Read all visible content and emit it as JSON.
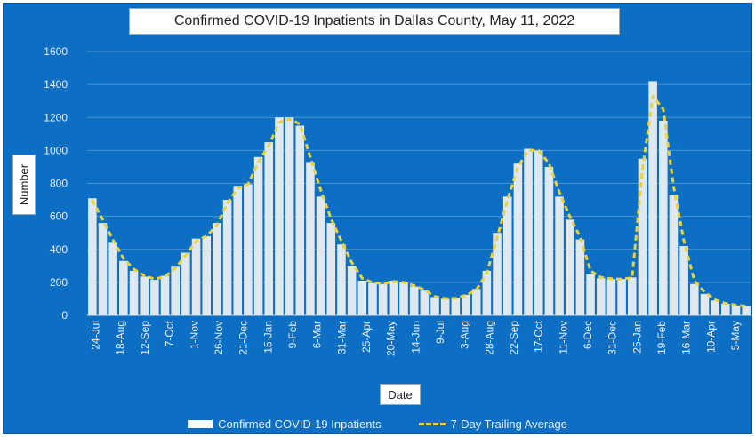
{
  "colors": {
    "background": "#0d6fc4",
    "bars": "#dfe7ef",
    "average_line": "#e6d43a",
    "gridline": "#4a93d4",
    "tick_text": "#e8eef6"
  },
  "chart_data": {
    "type": "bar",
    "title": "Confirmed COVID-19 Inpatients in Dallas County, May 11, 2022",
    "xlabel": "Date",
    "ylabel": "Number",
    "ylim": [
      0,
      1600
    ],
    "yticks": [
      0,
      200,
      400,
      600,
      800,
      1000,
      1200,
      1400,
      1600
    ],
    "grid": true,
    "legend_position": "bottom",
    "x_tick_labels": [
      "24-Jul",
      "18-Aug",
      "12-Sep",
      "7-Oct",
      "1-Nov",
      "26-Nov",
      "21-Dec",
      "15-Jan",
      "9-Feb",
      "6-Mar",
      "31-Mar",
      "25-Apr",
      "20-May",
      "14-Jun",
      "9-Jul",
      "3-Aug",
      "28-Aug",
      "22-Sep",
      "17-Oct",
      "11-Nov",
      "6-Dec",
      "31-Dec",
      "25-Jan",
      "19-Feb",
      "16-Mar",
      "10-Apr",
      "5-May"
    ],
    "series": [
      {
        "name": "Confirmed COVID-19 Inpatients",
        "type": "bar",
        "values": [
          710,
          560,
          440,
          330,
          270,
          235,
          215,
          240,
          295,
          380,
          465,
          480,
          560,
          700,
          785,
          795,
          960,
          1050,
          1200,
          1200,
          1150,
          930,
          720,
          560,
          430,
          300,
          210,
          195,
          190,
          210,
          200,
          175,
          150,
          110,
          100,
          105,
          125,
          160,
          270,
          500,
          720,
          920,
          1010,
          1000,
          900,
          720,
          580,
          460,
          250,
          225,
          220,
          220,
          230,
          950,
          1420,
          1180,
          730,
          420,
          190,
          130,
          90,
          70,
          60,
          55
        ]
      },
      {
        "name": "7-Day Trailing Average",
        "type": "line",
        "style": "dashed",
        "values": [
          700,
          580,
          455,
          345,
          280,
          240,
          220,
          235,
          285,
          365,
          450,
          480,
          545,
          680,
          770,
          795,
          930,
          1030,
          1170,
          1190,
          1160,
          960,
          760,
          585,
          450,
          320,
          225,
          198,
          192,
          205,
          200,
          180,
          155,
          115,
          102,
          104,
          122,
          155,
          255,
          470,
          700,
          900,
          1000,
          1000,
          920,
          745,
          600,
          475,
          270,
          230,
          222,
          220,
          228,
          880,
          1330,
          1250,
          780,
          450,
          210,
          140,
          95,
          72,
          62,
          56
        ]
      }
    ]
  }
}
